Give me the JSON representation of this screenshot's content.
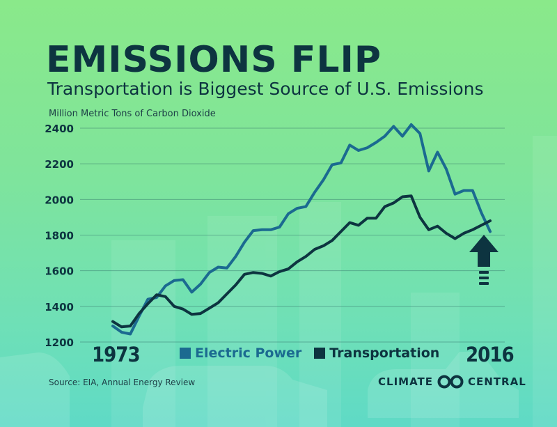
{
  "header": {
    "title": "EMISSIONS FLIP",
    "subtitle": "Transportation is Biggest Source of U.S. Emissions"
  },
  "footer": {
    "source": "Source: EIA, Annual Energy Review",
    "brand_left": "CLIMATE",
    "brand_right": "CENTRAL"
  },
  "colors": {
    "electric": "#1b6a90",
    "transport": "#0d3440"
  },
  "chart_data": {
    "type": "line",
    "title": "EMISSIONS FLIP",
    "subtitle": "Transportation is Biggest Source of U.S. Emissions",
    "ylabel": "Million Metric Tons of Carbon Dioxide",
    "xlabel": "",
    "ylim": [
      1200,
      2400
    ],
    "yticks": [
      1200,
      1400,
      1600,
      1800,
      2000,
      2200,
      2400
    ],
    "xlim": [
      1973,
      2016
    ],
    "xtick_labels": [
      "1973",
      "2016"
    ],
    "grid": true,
    "legend_position": "bottom-center",
    "x": [
      1973,
      1974,
      1975,
      1976,
      1977,
      1978,
      1979,
      1980,
      1981,
      1982,
      1983,
      1984,
      1985,
      1986,
      1987,
      1988,
      1989,
      1990,
      1991,
      1992,
      1993,
      1994,
      1995,
      1996,
      1997,
      1998,
      1999,
      2000,
      2001,
      2002,
      2003,
      2004,
      2005,
      2006,
      2007,
      2008,
      2009,
      2010,
      2011,
      2012,
      2013,
      2014,
      2015,
      2016
    ],
    "series": [
      {
        "name": "Electric Power",
        "values": [
          1290,
          1255,
          1245,
          1345,
          1440,
          1450,
          1515,
          1545,
          1550,
          1480,
          1525,
          1590,
          1620,
          1615,
          1680,
          1760,
          1825,
          1830,
          1830,
          1845,
          1920,
          1950,
          1960,
          2040,
          2110,
          2195,
          2205,
          2305,
          2275,
          2290,
          2320,
          2355,
          2410,
          2355,
          2420,
          2370,
          2160,
          2265,
          2170,
          2030,
          2050,
          2050,
          1925,
          1820
        ]
      },
      {
        "name": "Transportation",
        "values": [
          1315,
          1285,
          1290,
          1360,
          1415,
          1465,
          1455,
          1400,
          1385,
          1355,
          1360,
          1390,
          1420,
          1470,
          1520,
          1580,
          1590,
          1585,
          1570,
          1595,
          1610,
          1650,
          1680,
          1720,
          1740,
          1770,
          1820,
          1870,
          1855,
          1895,
          1895,
          1960,
          1980,
          2015,
          2020,
          1900,
          1830,
          1850,
          1810,
          1780,
          1810,
          1830,
          1855,
          1880
        ]
      }
    ]
  }
}
